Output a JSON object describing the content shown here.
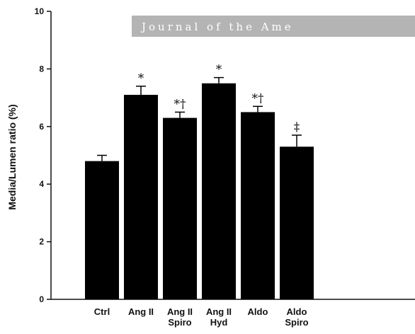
{
  "watermark": {
    "text": "Journal of the Ame",
    "color": "#b4b4b4"
  },
  "chart_data": {
    "type": "bar",
    "ylabel": "Media/Lumen ratio (%)",
    "xlabel": "",
    "ylim": [
      0,
      10
    ],
    "yticks": [
      0,
      2,
      4,
      6,
      8,
      10
    ],
    "categories": [
      [
        "Ctrl"
      ],
      [
        "Ang II"
      ],
      [
        "Ang II",
        "Spiro"
      ],
      [
        "Ang II",
        "Hyd"
      ],
      [
        "Aldo"
      ],
      [
        "Aldo",
        "Spiro"
      ]
    ],
    "values": [
      4.8,
      7.1,
      6.3,
      7.5,
      6.5,
      5.3
    ],
    "errors": [
      0.2,
      0.3,
      0.2,
      0.2,
      0.2,
      0.4
    ],
    "annotations": [
      "",
      "*",
      "*†",
      "*",
      "*†",
      "‡"
    ],
    "bar_color": "#000000",
    "grid": false
  }
}
